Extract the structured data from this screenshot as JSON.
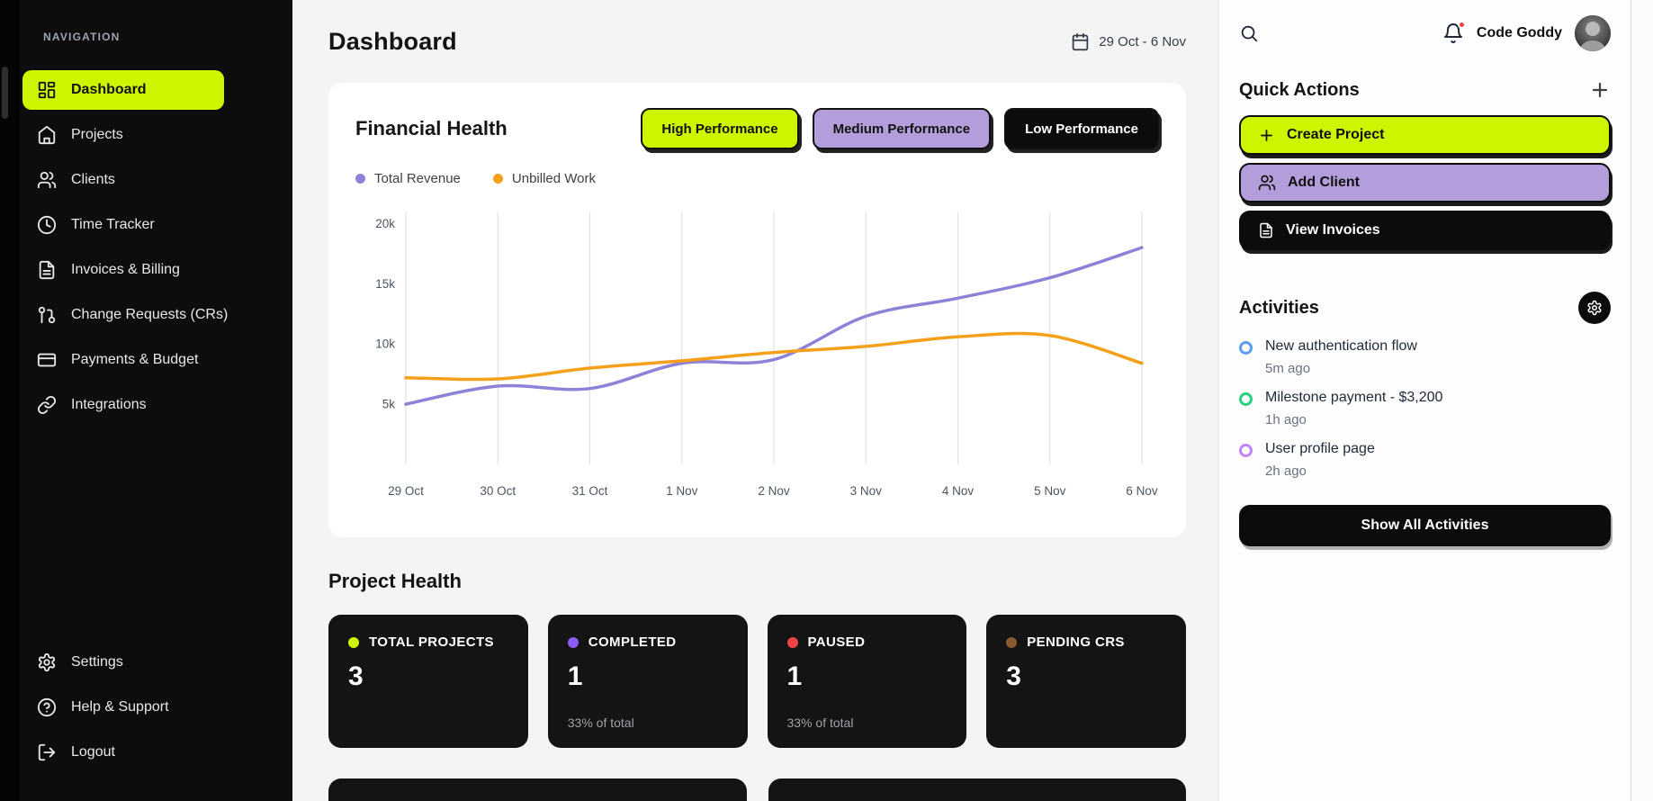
{
  "colors": {
    "lime": "#cdf500",
    "purple": "#b49ddb",
    "black": "#0c0c0c",
    "badge_red": "#ef4444"
  },
  "sidebar": {
    "section_label": "NAVIGATION",
    "items": [
      {
        "label": "Dashboard",
        "icon": "dashboard-grid-icon",
        "active": true
      },
      {
        "label": "Projects",
        "icon": "home-icon"
      },
      {
        "label": "Clients",
        "icon": "users-icon"
      },
      {
        "label": "Time Tracker",
        "icon": "clock-icon"
      },
      {
        "label": "Invoices & Billing",
        "icon": "file-text-icon"
      },
      {
        "label": "Change Requests (CRs)",
        "icon": "git-pull-request-icon"
      },
      {
        "label": "Payments & Budget",
        "icon": "credit-card-icon"
      },
      {
        "label": "Integrations",
        "icon": "link-icon"
      }
    ],
    "footer_items": [
      {
        "label": "Settings",
        "icon": "gear-icon"
      },
      {
        "label": "Help & Support",
        "icon": "help-circle-icon"
      },
      {
        "label": "Logout",
        "icon": "logout-icon"
      }
    ]
  },
  "header": {
    "title": "Dashboard",
    "date_range": "29 Oct - 6 Nov"
  },
  "financial_health": {
    "title": "Financial Health",
    "filters": [
      {
        "label": "High Performance",
        "style": "lime"
      },
      {
        "label": "Medium Performance",
        "style": "purple"
      },
      {
        "label": "Low Performance",
        "style": "black"
      }
    ],
    "legend": [
      {
        "label": "Total Revenue",
        "color": "#8c83d9"
      },
      {
        "label": "Unbilled Work",
        "color": "#f5a01a"
      }
    ]
  },
  "chart_data": {
    "type": "line",
    "title": "Financial Health",
    "x": [
      "29 Oct",
      "30 Oct",
      "31 Oct",
      "1 Nov",
      "2 Nov",
      "3 Nov",
      "4 Nov",
      "5 Nov",
      "6 Nov"
    ],
    "series": [
      {
        "name": "Total Revenue",
        "color": "#8c83d9",
        "values": [
          5000,
          6500,
          6300,
          8400,
          8700,
          12300,
          13800,
          15500,
          18000
        ]
      },
      {
        "name": "Unbilled Work",
        "color": "#f5a01a",
        "values": [
          7200,
          7100,
          8000,
          8600,
          9300,
          9800,
          10600,
          10700,
          8400
        ]
      }
    ],
    "yticks": [
      {
        "v": 5000,
        "label": "5k"
      },
      {
        "v": 10000,
        "label": "10k"
      },
      {
        "v": 15000,
        "label": "15k"
      },
      {
        "v": 20000,
        "label": "20k"
      }
    ],
    "ylim": [
      0,
      21000
    ],
    "grid": "vertical-only",
    "grid_color": "#e3e3e8",
    "tick_color": "#4b5563",
    "legend_position": "top-left",
    "smooth": true
  },
  "project_health": {
    "title": "Project Health",
    "cards": [
      {
        "label": "TOTAL PROJECTS",
        "value": "3",
        "sub": "",
        "dot_color": "#cdf500"
      },
      {
        "label": "COMPLETED",
        "value": "1",
        "sub": "33% of total",
        "dot_color": "#8b5cf6"
      },
      {
        "label": "PAUSED",
        "value": "1",
        "sub": "33% of total",
        "dot_color": "#ef4444"
      },
      {
        "label": "PENDING CRS",
        "value": "3",
        "sub": "",
        "dot_color": "#8a5a2e"
      }
    ]
  },
  "topbar_right": {
    "user_name": "Code Goddy"
  },
  "quick_actions": {
    "title": "Quick Actions",
    "buttons": [
      {
        "label": "Create Project",
        "icon": "plus-icon",
        "style": "lime"
      },
      {
        "label": "Add Client",
        "icon": "users-icon",
        "style": "purple"
      },
      {
        "label": "View Invoices",
        "icon": "file-text-icon",
        "style": "black"
      }
    ]
  },
  "activities": {
    "title": "Activities",
    "items": [
      {
        "title": "New authentication flow",
        "time": "5m ago",
        "ring_color": "#5b9df0"
      },
      {
        "title": "Milestone payment - $3,200",
        "time": "1h ago",
        "ring_color": "#27d17f"
      },
      {
        "title": "User profile page",
        "time": "2h ago",
        "ring_color": "#c084fc"
      }
    ],
    "show_all_label": "Show All Activities"
  }
}
